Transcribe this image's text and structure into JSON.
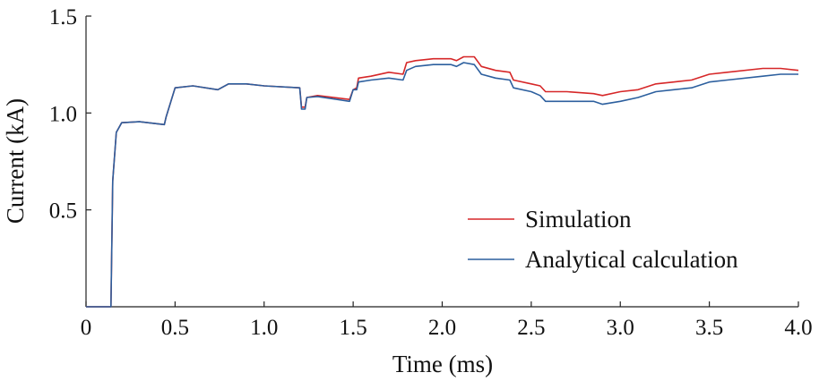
{
  "chart_data": {
    "type": "line",
    "xlabel": "Time (ms)",
    "ylabel": "Current (kA)",
    "xlim": [
      0,
      4.0
    ],
    "ylim": [
      0,
      1.5
    ],
    "x_ticks": [
      "0",
      "0.5",
      "1.0",
      "1.5",
      "2.0",
      "2.5",
      "3.0",
      "3.5",
      "4.0"
    ],
    "y_ticks": [
      "0.5",
      "1.0",
      "1.5"
    ],
    "grid": false,
    "legend_position": "lower-right",
    "series": [
      {
        "name": "Simulation",
        "color": "#d62728",
        "points": [
          [
            0,
            0
          ],
          [
            0.14,
            0
          ],
          [
            0.15,
            0.65
          ],
          [
            0.17,
            0.9
          ],
          [
            0.2,
            0.95
          ],
          [
            0.3,
            0.955
          ],
          [
            0.44,
            0.94
          ],
          [
            0.45,
            0.98
          ],
          [
            0.5,
            1.13
          ],
          [
            0.6,
            1.14
          ],
          [
            0.74,
            1.12
          ],
          [
            0.8,
            1.15
          ],
          [
            0.9,
            1.15
          ],
          [
            1.0,
            1.14
          ],
          [
            1.2,
            1.13
          ],
          [
            1.21,
            1.03
          ],
          [
            1.23,
            1.03
          ],
          [
            1.24,
            1.08
          ],
          [
            1.3,
            1.09
          ],
          [
            1.48,
            1.07
          ],
          [
            1.5,
            1.12
          ],
          [
            1.52,
            1.13
          ],
          [
            1.53,
            1.18
          ],
          [
            1.6,
            1.19
          ],
          [
            1.7,
            1.21
          ],
          [
            1.78,
            1.2
          ],
          [
            1.8,
            1.26
          ],
          [
            1.85,
            1.27
          ],
          [
            1.95,
            1.28
          ],
          [
            2.05,
            1.28
          ],
          [
            2.08,
            1.27
          ],
          [
            2.12,
            1.29
          ],
          [
            2.18,
            1.29
          ],
          [
            2.22,
            1.24
          ],
          [
            2.3,
            1.22
          ],
          [
            2.38,
            1.21
          ],
          [
            2.4,
            1.17
          ],
          [
            2.5,
            1.15
          ],
          [
            2.55,
            1.14
          ],
          [
            2.58,
            1.11
          ],
          [
            2.7,
            1.11
          ],
          [
            2.85,
            1.1
          ],
          [
            2.9,
            1.09
          ],
          [
            3.0,
            1.11
          ],
          [
            3.1,
            1.12
          ],
          [
            3.2,
            1.15
          ],
          [
            3.3,
            1.16
          ],
          [
            3.4,
            1.17
          ],
          [
            3.5,
            1.2
          ],
          [
            3.6,
            1.21
          ],
          [
            3.8,
            1.23
          ],
          [
            3.9,
            1.23
          ],
          [
            4.0,
            1.22
          ]
        ]
      },
      {
        "name": "Analytical calculation",
        "color": "#2c5f9e",
        "points": [
          [
            0,
            0
          ],
          [
            0.14,
            0
          ],
          [
            0.15,
            0.65
          ],
          [
            0.17,
            0.9
          ],
          [
            0.2,
            0.95
          ],
          [
            0.3,
            0.955
          ],
          [
            0.44,
            0.94
          ],
          [
            0.45,
            0.98
          ],
          [
            0.5,
            1.13
          ],
          [
            0.6,
            1.14
          ],
          [
            0.74,
            1.12
          ],
          [
            0.8,
            1.15
          ],
          [
            0.9,
            1.15
          ],
          [
            1.0,
            1.14
          ],
          [
            1.2,
            1.13
          ],
          [
            1.21,
            1.02
          ],
          [
            1.23,
            1.02
          ],
          [
            1.24,
            1.08
          ],
          [
            1.3,
            1.085
          ],
          [
            1.48,
            1.06
          ],
          [
            1.5,
            1.12
          ],
          [
            1.52,
            1.12
          ],
          [
            1.53,
            1.16
          ],
          [
            1.6,
            1.17
          ],
          [
            1.7,
            1.18
          ],
          [
            1.78,
            1.17
          ],
          [
            1.8,
            1.22
          ],
          [
            1.85,
            1.24
          ],
          [
            1.95,
            1.25
          ],
          [
            2.05,
            1.25
          ],
          [
            2.08,
            1.24
          ],
          [
            2.12,
            1.26
          ],
          [
            2.18,
            1.25
          ],
          [
            2.22,
            1.2
          ],
          [
            2.3,
            1.18
          ],
          [
            2.38,
            1.17
          ],
          [
            2.4,
            1.13
          ],
          [
            2.5,
            1.11
          ],
          [
            2.55,
            1.09
          ],
          [
            2.58,
            1.06
          ],
          [
            2.7,
            1.06
          ],
          [
            2.85,
            1.06
          ],
          [
            2.9,
            1.045
          ],
          [
            3.0,
            1.06
          ],
          [
            3.1,
            1.08
          ],
          [
            3.2,
            1.11
          ],
          [
            3.3,
            1.12
          ],
          [
            3.4,
            1.13
          ],
          [
            3.5,
            1.16
          ],
          [
            3.6,
            1.17
          ],
          [
            3.8,
            1.19
          ],
          [
            3.9,
            1.2
          ],
          [
            4.0,
            1.2
          ]
        ]
      }
    ]
  }
}
